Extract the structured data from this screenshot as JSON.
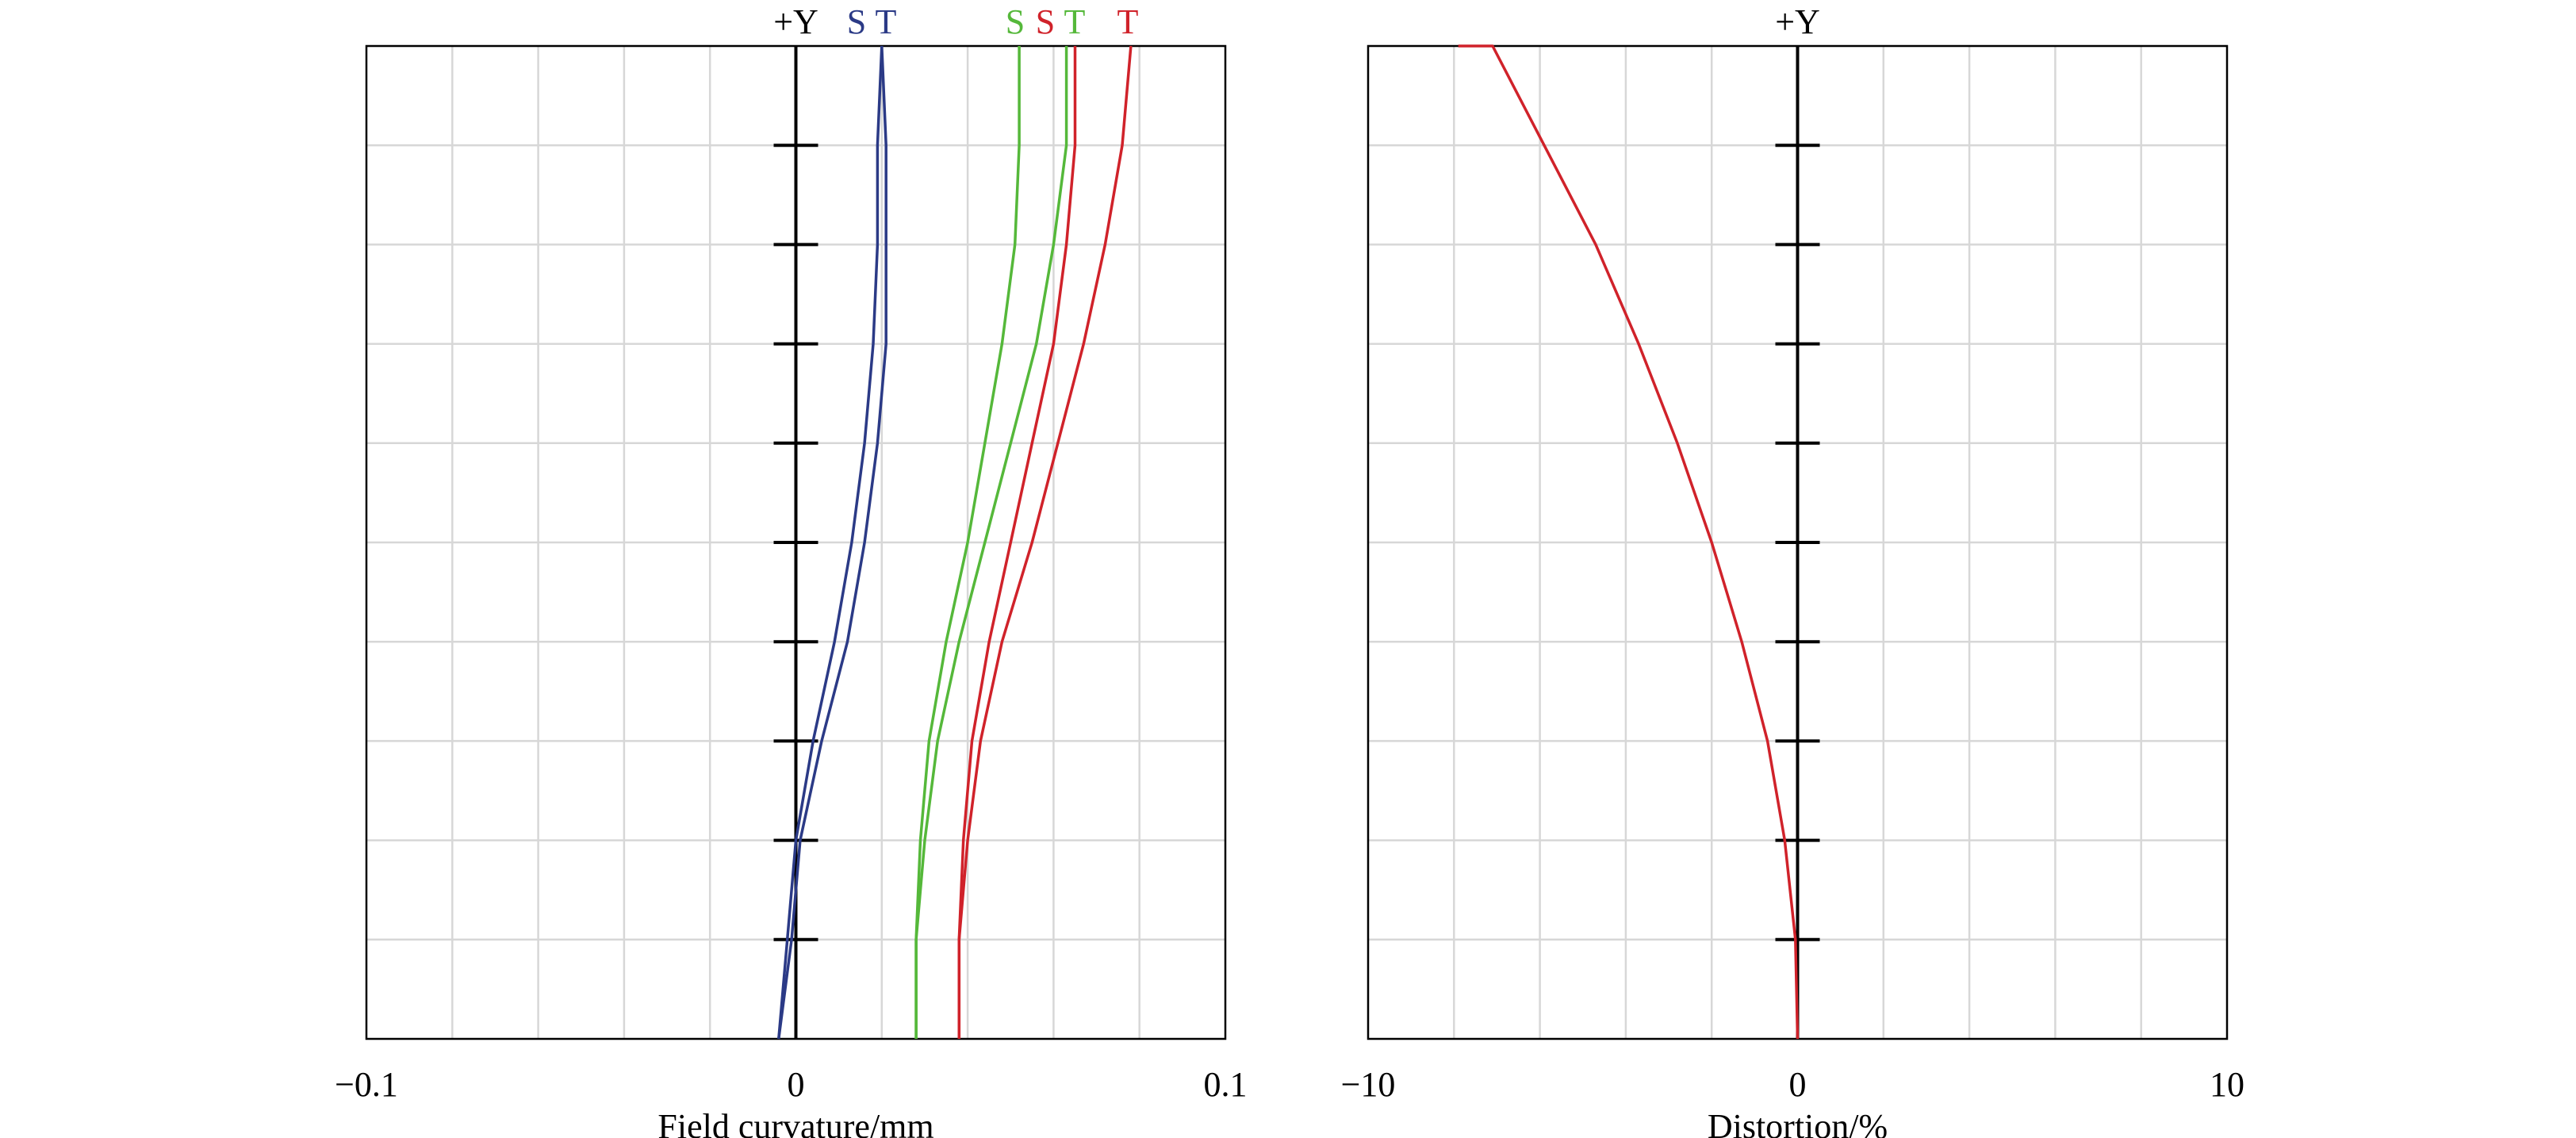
{
  "colors": {
    "blue": "#2b3a86",
    "green": "#55b83a",
    "red": "#d0222a",
    "grid": "#d7d7d7",
    "axis": "#000000"
  },
  "chart_data": [
    {
      "type": "line",
      "xlabel": "Field curvature/mm",
      "ylabel": "",
      "xlim": [
        -0.1,
        0.1
      ],
      "ylim": [
        0,
        1
      ],
      "x_ticks": [
        -0.1,
        0,
        0.1
      ],
      "x_tick_labels": [
        "−0.1",
        "0",
        "0.1"
      ],
      "x_gridlines": 10,
      "y_gridlines": 10,
      "grid": true,
      "axis_label": "+Y",
      "legend": "top",
      "legend_labels": [
        {
          "text": "S",
          "color": "blue"
        },
        {
          "text": "T",
          "color": "blue"
        },
        {
          "text": "S",
          "color": "green"
        },
        {
          "text": "S",
          "color": "red"
        },
        {
          "text": "T",
          "color": "green"
        },
        {
          "text": "T",
          "color": "red"
        }
      ],
      "series": [
        {
          "color": "blue",
          "x": [
            -0.004,
            -0.002,
            0.0,
            0.004,
            0.009,
            0.013,
            0.016,
            0.018,
            0.019,
            0.019,
            0.02
          ],
          "y": [
            0,
            0.1,
            0.2,
            0.3,
            0.4,
            0.5,
            0.6,
            0.7,
            0.8,
            0.9,
            1.0
          ]
        },
        {
          "color": "blue",
          "x": [
            -0.004,
            -0.001,
            0.001,
            0.006,
            0.012,
            0.016,
            0.019,
            0.021,
            0.021,
            0.021,
            0.02
          ],
          "y": [
            0,
            0.1,
            0.2,
            0.3,
            0.4,
            0.5,
            0.6,
            0.7,
            0.8,
            0.9,
            1.0
          ]
        },
        {
          "color": "green",
          "x": [
            0.028,
            0.028,
            0.029,
            0.031,
            0.035,
            0.04,
            0.044,
            0.048,
            0.051,
            0.052,
            0.052
          ],
          "y": [
            0,
            0.1,
            0.2,
            0.3,
            0.4,
            0.5,
            0.6,
            0.7,
            0.8,
            0.9,
            1.0
          ]
        },
        {
          "color": "green",
          "x": [
            0.028,
            0.028,
            0.03,
            0.033,
            0.038,
            0.044,
            0.05,
            0.056,
            0.06,
            0.063,
            0.063
          ],
          "y": [
            0,
            0.1,
            0.2,
            0.3,
            0.4,
            0.5,
            0.6,
            0.7,
            0.8,
            0.9,
            1.0
          ]
        },
        {
          "color": "red",
          "x": [
            0.038,
            0.038,
            0.039,
            0.041,
            0.045,
            0.05,
            0.055,
            0.06,
            0.063,
            0.065,
            0.065
          ],
          "y": [
            0,
            0.1,
            0.2,
            0.3,
            0.4,
            0.5,
            0.6,
            0.7,
            0.8,
            0.9,
            1.0
          ]
        },
        {
          "color": "red",
          "x": [
            0.038,
            0.038,
            0.04,
            0.043,
            0.048,
            0.055,
            0.061,
            0.067,
            0.072,
            0.076,
            0.078
          ],
          "y": [
            0,
            0.1,
            0.2,
            0.3,
            0.4,
            0.5,
            0.6,
            0.7,
            0.8,
            0.9,
            1.0
          ]
        }
      ]
    },
    {
      "type": "line",
      "xlabel": "Distortion/%",
      "ylabel": "",
      "xlim": [
        -10,
        10
      ],
      "ylim": [
        0,
        1
      ],
      "x_ticks": [
        -10,
        0,
        10
      ],
      "x_tick_labels": [
        "−10",
        "0",
        "10"
      ],
      "x_gridlines": 10,
      "y_gridlines": 10,
      "grid": true,
      "axis_label": "+Y",
      "series": [
        {
          "color": "red",
          "x": [
            0.0,
            -0.05,
            -0.3,
            -0.7,
            -1.3,
            -2.0,
            -2.8,
            -3.7,
            -4.7,
            -5.9,
            -7.1,
            -7.9
          ],
          "y": [
            0,
            0.1,
            0.2,
            0.3,
            0.4,
            0.5,
            0.6,
            0.7,
            0.8,
            0.9,
            1.0,
            1.0
          ]
        }
      ]
    }
  ]
}
